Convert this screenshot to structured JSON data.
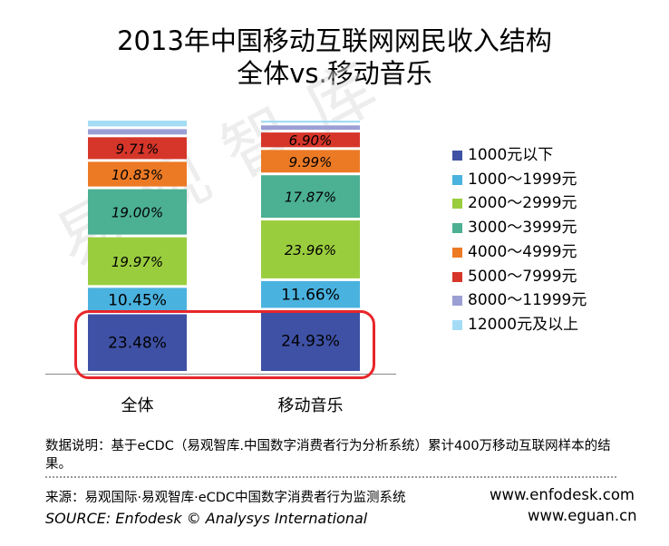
{
  "title_line1": "2013年中国移动互联网网民收入结构",
  "title_line2": "全体vs.移动音乐",
  "watermark": "易观智库",
  "chart_data": {
    "type": "bar",
    "stacked": true,
    "categories": [
      "全体",
      "移动音乐"
    ],
    "series": [
      {
        "name": "1000元以下",
        "color": "#3f51a5",
        "values": [
          23.48,
          24.93
        ],
        "labels": [
          "23.48%",
          "24.93%"
        ]
      },
      {
        "name": "1000～1999元",
        "color": "#4ab2df",
        "values": [
          10.45,
          11.66
        ],
        "labels": [
          "10.45%",
          "11.66%"
        ]
      },
      {
        "name": "2000～2999元",
        "color": "#9acd3e",
        "values": [
          19.97,
          23.96
        ],
        "labels": [
          "19.97%",
          "23.96%"
        ]
      },
      {
        "name": "3000～3999元",
        "color": "#4cb093",
        "values": [
          19.0,
          17.87
        ],
        "labels": [
          "19.00%",
          "17.87%"
        ]
      },
      {
        "name": "4000～4999元",
        "color": "#ec7a25",
        "values": [
          10.83,
          9.99
        ],
        "labels": [
          "10.83%",
          "9.99%"
        ]
      },
      {
        "name": "5000～7999元",
        "color": "#d6362a",
        "values": [
          9.71,
          6.9
        ],
        "labels": [
          "9.71%",
          "6.90%"
        ]
      },
      {
        "name": "8000～11999元",
        "color": "#9b9fd4",
        "values": [
          3.2,
          2.8
        ],
        "labels": [
          "",
          ""
        ]
      },
      {
        "name": "12000元及以上",
        "color": "#a5dcf5",
        "values": [
          3.36,
          1.89
        ],
        "labels": [
          "",
          ""
        ]
      }
    ],
    "legend_position": "right",
    "grid": false
  },
  "note": "数据说明：基于eCDC（易观智库.中国数字消费者行为分析系统）累计400万移动互联网样本的结果。",
  "source": "来源：易观国际·易观智库·eCDC中国数字消费者行为监测系统",
  "source_en": "SOURCE: Enfodesk © Analysys International",
  "url1": "www.enfodesk.com",
  "url2": "www.eguan.cn"
}
